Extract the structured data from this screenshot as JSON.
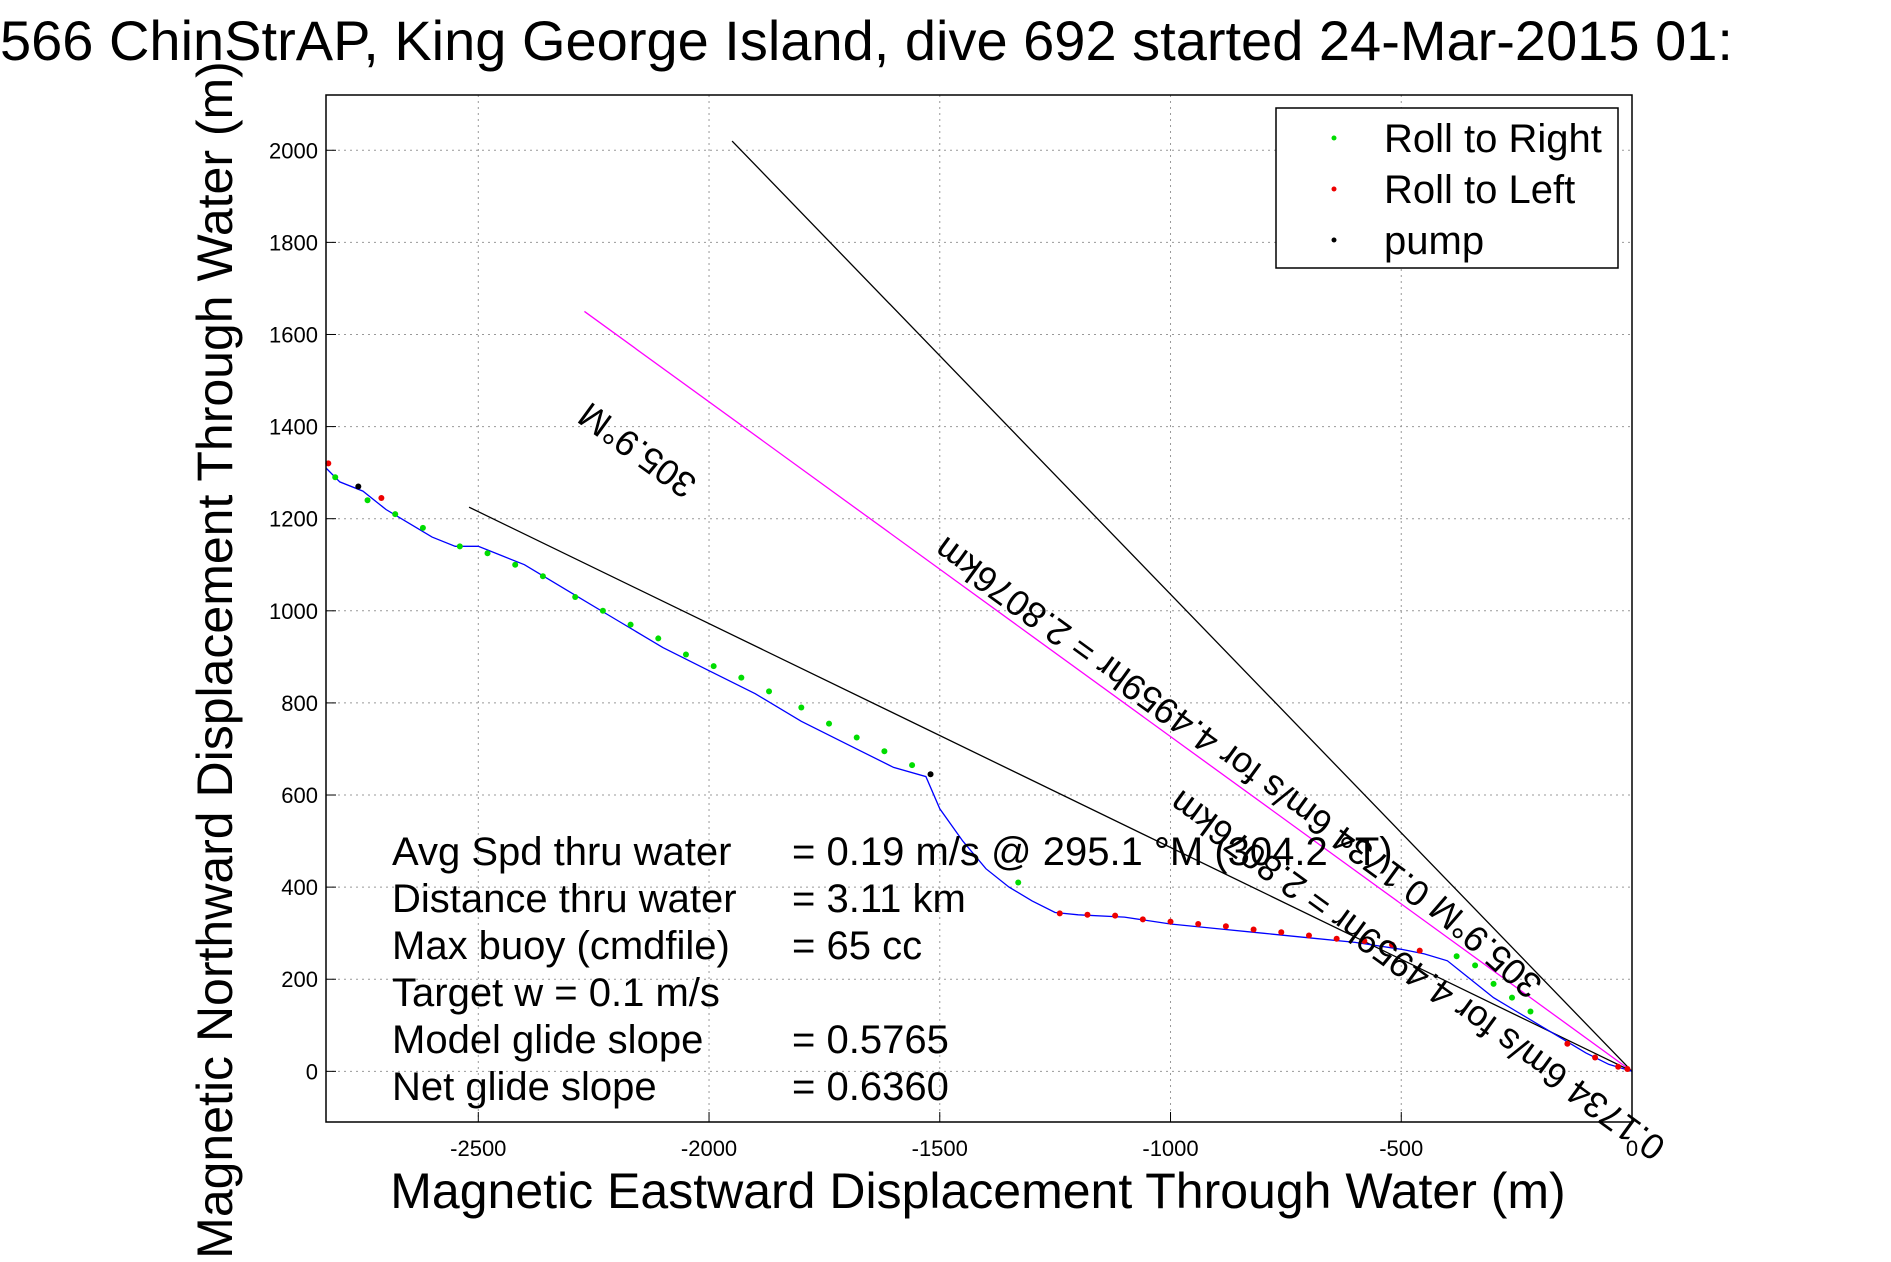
{
  "chart_data": {
    "type": "line",
    "title": "566 ChinStrAP, King George Island, dive 692 started 24-Mar-2015 01:",
    "xlabel": "Magnetic Eastward Displacement Through Water (m)",
    "ylabel": "Magnetic Northward Displacement Through Water (m)",
    "xlim": [
      -2830,
      0
    ],
    "ylim": [
      -110,
      2120
    ],
    "xticks": [
      -2500,
      -2000,
      -1500,
      -1000,
      -500,
      0
    ],
    "yticks": [
      0,
      200,
      400,
      600,
      800,
      1000,
      1200,
      1400,
      1600,
      1800,
      2000
    ],
    "grid": true,
    "legend_position": "top-right",
    "legend": [
      {
        "label": "Roll to Right",
        "color": "#00dd00"
      },
      {
        "label": "Roll to Left",
        "color": "#ee0000"
      },
      {
        "label": "pump",
        "color": "#000000"
      }
    ],
    "track": {
      "color": "#0000ff",
      "x": [
        -2830,
        -2800,
        -2750,
        -2700,
        -2650,
        -2600,
        -2550,
        -2500,
        -2450,
        -2400,
        -2300,
        -2200,
        -2100,
        -2000,
        -1900,
        -1800,
        -1700,
        -1600,
        -1530,
        -1500,
        -1450,
        -1400,
        -1350,
        -1300,
        -1250,
        -1200,
        -1100,
        -1000,
        -900,
        -800,
        -700,
        -600,
        -500,
        -450,
        -400,
        -350,
        -300,
        -250,
        -200,
        -150,
        -100,
        -50,
        0
      ],
      "y": [
        1310,
        1280,
        1260,
        1220,
        1190,
        1160,
        1140,
        1140,
        1120,
        1100,
        1040,
        980,
        920,
        870,
        820,
        760,
        710,
        660,
        640,
        570,
        500,
        440,
        400,
        370,
        345,
        340,
        335,
        320,
        310,
        300,
        290,
        280,
        265,
        255,
        240,
        200,
        160,
        130,
        100,
        70,
        40,
        15,
        0
      ]
    },
    "roll_right": {
      "x": [
        -2810,
        -2740,
        -2680,
        -2620,
        -2540,
        -2480,
        -2420,
        -2360,
        -2290,
        -2230,
        -2170,
        -2110,
        -2050,
        -1990,
        -1930,
        -1870,
        -1800,
        -1740,
        -1680,
        -1620,
        -1560,
        -1330,
        -380,
        -340,
        -300,
        -260,
        -220
      ],
      "y": [
        1290,
        1240,
        1210,
        1180,
        1140,
        1125,
        1100,
        1075,
        1030,
        1000,
        970,
        940,
        905,
        880,
        855,
        825,
        790,
        755,
        725,
        695,
        665,
        410,
        250,
        230,
        190,
        160,
        130
      ]
    },
    "roll_left": {
      "x": [
        -2825,
        -2710,
        -1240,
        -1180,
        -1120,
        -1060,
        -1000,
        -940,
        -880,
        -820,
        -760,
        -700,
        -640,
        -580,
        -520,
        -460,
        -140,
        -80,
        -30,
        -10
      ],
      "y": [
        1320,
        1245,
        343,
        340,
        338,
        330,
        325,
        320,
        315,
        308,
        302,
        295,
        288,
        283,
        275,
        262,
        60,
        30,
        10,
        5
      ]
    },
    "pump": {
      "x": [
        -2760,
        -1520
      ],
      "y": [
        1270,
        645
      ]
    },
    "reference_lines": [
      {
        "color": "#000000",
        "x": [
          -1950,
          0
        ],
        "y": [
          2020,
          0
        ]
      },
      {
        "color": "#ff00ff",
        "x": [
          -2270,
          0
        ],
        "y": [
          1650,
          0
        ]
      },
      {
        "color": "#000000",
        "x": [
          -2520,
          0
        ],
        "y": [
          1225,
          0
        ]
      }
    ],
    "line_labels": [
      {
        "text": "305.9°M",
        "x": -2140,
        "y": 1370,
        "angle": 216
      },
      {
        "text": "0.1734 6m/s for 4.4959hr = 2.8076km",
        "x": -960,
        "y": 780,
        "angle": 216
      },
      {
        "text": "305.9°M",
        "x": -300,
        "y": 290,
        "angle": 221
      },
      {
        "text": "0.1734 6m/s for 4.4959hr = 2.8076km",
        "x": -450,
        "y": 230,
        "angle": 216
      }
    ],
    "stats": [
      {
        "label": "Avg Spd thru water",
        "value": "=  0.19 m/s @ 295.1  °M (304.2 °T)"
      },
      {
        "label": "Distance thru water",
        "value": "=  3.11 km"
      },
      {
        "label": "Max buoy (cmdfile)",
        "value": "= 65 cc"
      },
      {
        "label": "Target w    = 0.1 m/s",
        "value": ""
      },
      {
        "label": "Model glide slope",
        "value": "= 0.5765"
      },
      {
        "label": "Net glide slope",
        "value": "= 0.6360"
      }
    ]
  }
}
